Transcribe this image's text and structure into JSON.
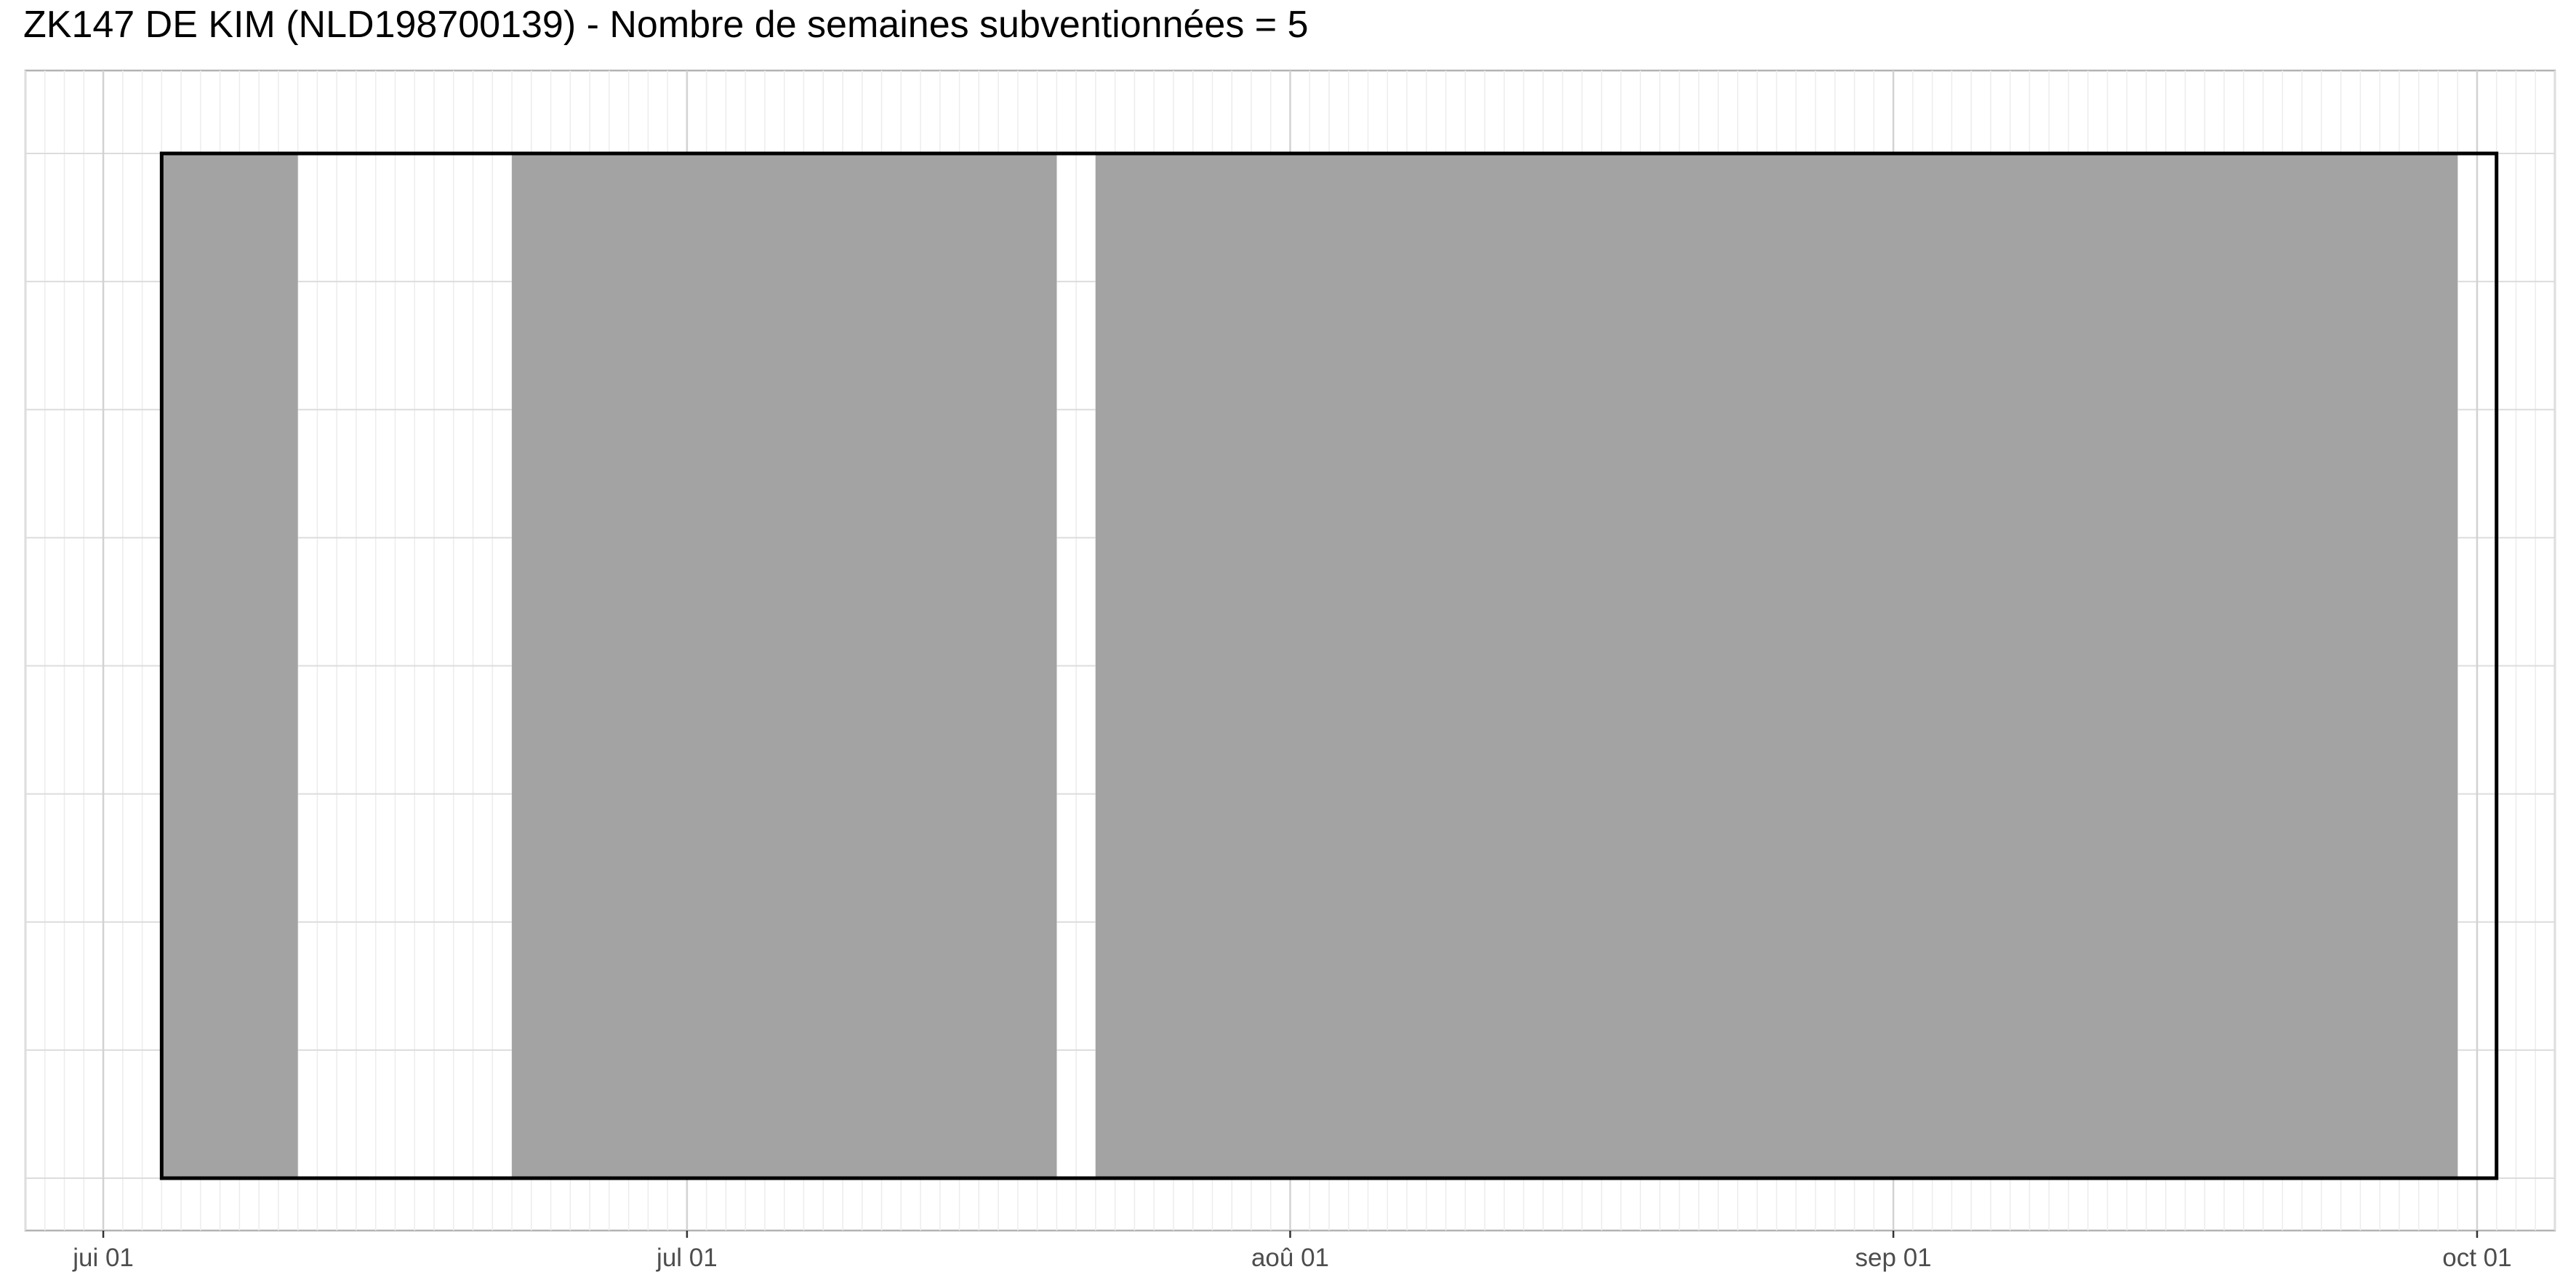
{
  "chart_data": {
    "type": "timeline",
    "title": "ZK147 DE KIM (NLD198700139) - Nombre de semaines subventionnées = 5",
    "xlabel": "",
    "ylabel": "",
    "x_axis": {
      "type": "date",
      "range": [
        "2023-05-28",
        "2023-10-05"
      ],
      "ticks": [
        {
          "date": "2023-06-01",
          "label": "jui 01"
        },
        {
          "date": "2023-07-01",
          "label": "jul 01"
        },
        {
          "date": "2023-08-01",
          "label": "aoû 01"
        },
        {
          "date": "2023-09-01",
          "label": "sep 01"
        },
        {
          "date": "2023-10-01",
          "label": "oct 01"
        }
      ]
    },
    "outline_period": {
      "start": "2023-06-04",
      "end": "2023-10-02"
    },
    "filled_periods": [
      {
        "start": "2023-06-04",
        "end": "2023-06-11"
      },
      {
        "start": "2023-06-22",
        "end": "2023-07-20"
      },
      {
        "start": "2023-07-22",
        "end": "2023-09-30"
      }
    ],
    "fill_color": "#a3a3a3",
    "outline_color": "#000000",
    "grid": true,
    "legend": "none"
  }
}
